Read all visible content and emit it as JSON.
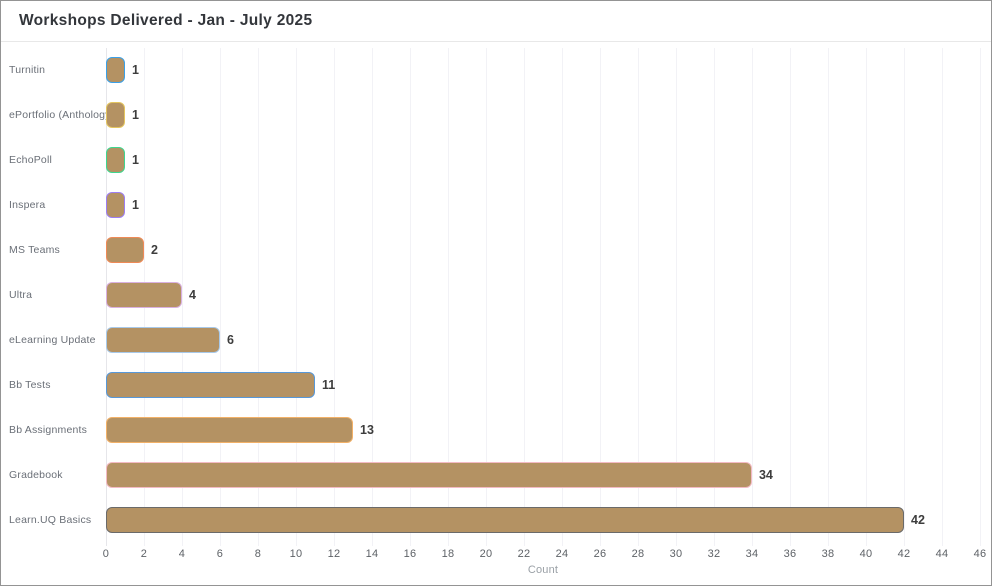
{
  "header": {
    "title": "Workshops Delivered - Jan - July 2025"
  },
  "colors": {
    "bar_fill": "#b49263",
    "accent_line": "#c9ddf6",
    "grid": "#f2f2f6",
    "value_label": "#3d3d3d"
  },
  "chart_data": {
    "type": "bar",
    "orientation": "horizontal",
    "title": "Workshops Delivered - Jan - July 2025",
    "categories": [
      "Turnitin",
      "ePortfolio (Anthology",
      "EchoPoll",
      "Inspera",
      "MS Teams",
      "Ultra",
      "eLearning Update",
      "Bb Tests",
      "Bb Assignments",
      "Gradebook",
      "Learn.UQ Basics"
    ],
    "values": [
      1,
      1,
      1,
      1,
      2,
      4,
      6,
      11,
      13,
      34,
      42
    ],
    "bar_fill": "#b49263",
    "bar_border_colors": [
      "#3aa0e8",
      "#e4c55e",
      "#3fd68f",
      "#9d7ef2",
      "#ef8a57",
      "#d9b0e0",
      "#a8c9e9",
      "#5898d8",
      "#f2b168",
      "#f3bac4",
      "#6a6a6a"
    ],
    "xlabel": "Count",
    "ylabel": "",
    "xlim": [
      0,
      46
    ],
    "x_ticks": [
      0,
      2,
      4,
      6,
      8,
      10,
      12,
      14,
      16,
      18,
      20,
      22,
      24,
      26,
      28,
      30,
      32,
      34,
      36,
      38,
      40,
      42,
      44,
      46
    ],
    "grid": true,
    "legend": false
  }
}
